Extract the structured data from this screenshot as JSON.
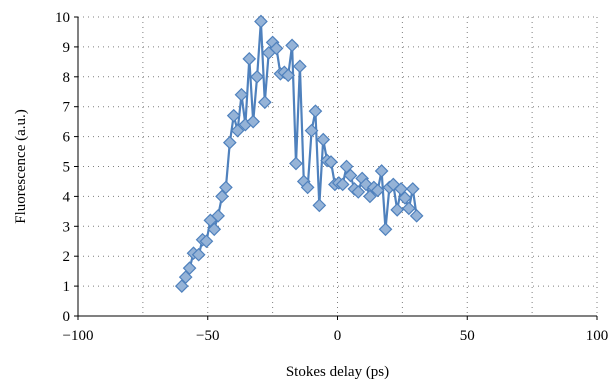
{
  "chart_data": {
    "type": "line",
    "xlabel": "Stokes delay (ps)",
    "ylabel": "Fluorescence (a.u.)",
    "xlim": [
      -100,
      100
    ],
    "ylim": [
      0,
      10
    ],
    "x_ticks": [
      -100,
      -50,
      0,
      50,
      100
    ],
    "y_ticks": [
      0,
      1,
      2,
      3,
      4,
      5,
      6,
      7,
      8,
      9,
      10
    ],
    "x_tick_labels": [
      "−100",
      "−50",
      "0",
      "50",
      "100"
    ],
    "y_tick_labels": [
      "0",
      "1",
      "2",
      "3",
      "4",
      "5",
      "6",
      "7",
      "8",
      "9",
      "10"
    ],
    "grid": "dotted",
    "legend": "none",
    "marker": "diamond",
    "series": [
      {
        "color": "#4f81bd",
        "marker_fill": "#95b3d7",
        "points": [
          [
            -60,
            1.0
          ],
          [
            -58.5,
            1.3
          ],
          [
            -57,
            1.6
          ],
          [
            -55.5,
            2.1
          ],
          [
            -53.5,
            2.05
          ],
          [
            -52,
            2.55
          ],
          [
            -50.5,
            2.5
          ],
          [
            -49,
            3.2
          ],
          [
            -47.5,
            2.9
          ],
          [
            -46,
            3.35
          ],
          [
            -44.5,
            4.0
          ],
          [
            -43,
            4.3
          ],
          [
            -41.5,
            5.8
          ],
          [
            -40,
            6.7
          ],
          [
            -38.5,
            6.2
          ],
          [
            -37,
            7.4
          ],
          [
            -35.5,
            6.4
          ],
          [
            -34,
            8.6
          ],
          [
            -32.5,
            6.5
          ],
          [
            -31,
            8.0
          ],
          [
            -29.5,
            9.85
          ],
          [
            -28,
            7.15
          ],
          [
            -26.5,
            8.8
          ],
          [
            -25,
            9.15
          ],
          [
            -23.5,
            8.95
          ],
          [
            -22,
            8.1
          ],
          [
            -20.5,
            8.15
          ],
          [
            -19,
            8.05
          ],
          [
            -17.5,
            9.05
          ],
          [
            -16,
            5.1
          ],
          [
            -14.5,
            8.35
          ],
          [
            -13,
            4.5
          ],
          [
            -11.5,
            4.3
          ],
          [
            -10,
            6.2
          ],
          [
            -8.5,
            6.85
          ],
          [
            -7,
            3.7
          ],
          [
            -5.5,
            5.9
          ],
          [
            -4,
            5.2
          ],
          [
            -2.5,
            5.15
          ],
          [
            -1,
            4.4
          ],
          [
            0.5,
            4.45
          ],
          [
            2,
            4.4
          ],
          [
            3.5,
            5.0
          ],
          [
            5,
            4.7
          ],
          [
            6.5,
            4.25
          ],
          [
            8,
            4.15
          ],
          [
            9.5,
            4.6
          ],
          [
            11,
            4.4
          ],
          [
            12.5,
            4.0
          ],
          [
            14,
            4.3
          ],
          [
            15.5,
            4.2
          ],
          [
            17,
            4.85
          ],
          [
            18.5,
            2.9
          ],
          [
            20,
            4.3
          ],
          [
            21.5,
            4.4
          ],
          [
            23,
            3.55
          ],
          [
            24.5,
            4.25
          ],
          [
            26,
            3.95
          ],
          [
            27.5,
            3.6
          ],
          [
            29,
            4.25
          ],
          [
            30.5,
            3.35
          ]
        ]
      }
    ]
  }
}
